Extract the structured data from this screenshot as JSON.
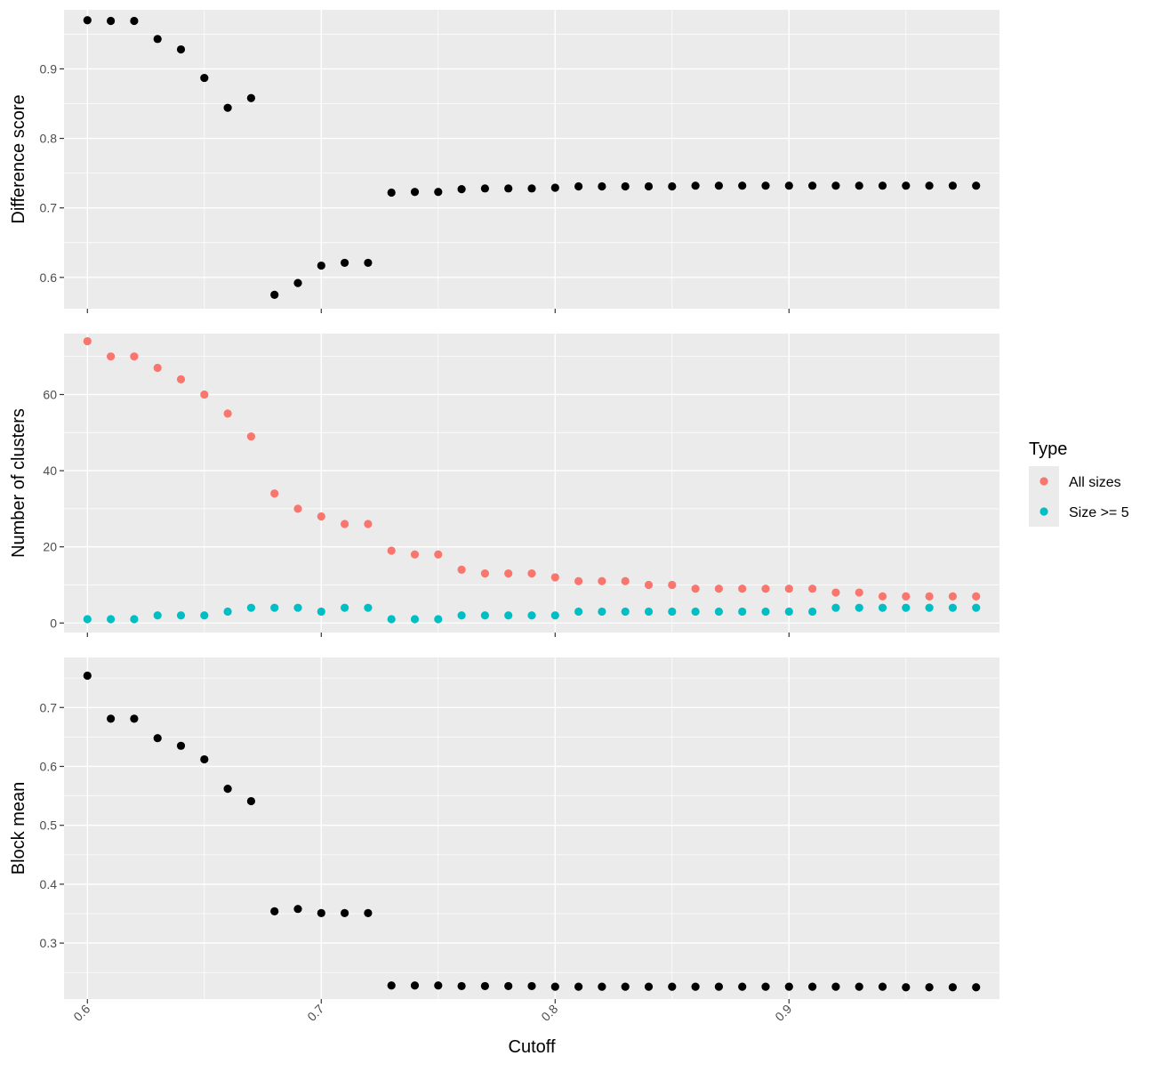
{
  "chart_data": [
    {
      "type": "scatter",
      "title": "",
      "xlabel": "",
      "ylabel": "Difference score",
      "xlim": [
        0.59,
        0.99
      ],
      "ylim": [
        0.555,
        0.985
      ],
      "xticks": [
        0.6,
        0.7,
        0.8,
        0.9
      ],
      "yticks": [
        0.6,
        0.7,
        0.8,
        0.9
      ],
      "x_tick_labels": [],
      "y_tick_labels": [
        "0.6",
        "0.7",
        "0.8",
        "0.9"
      ],
      "grid": true,
      "color": "#000000",
      "x": [
        0.6,
        0.61,
        0.62,
        0.63,
        0.64,
        0.65,
        0.66,
        0.67,
        0.68,
        0.69,
        0.7,
        0.71,
        0.72,
        0.73,
        0.74,
        0.75,
        0.76,
        0.77,
        0.78,
        0.79,
        0.8,
        0.81,
        0.82,
        0.83,
        0.84,
        0.85,
        0.86,
        0.87,
        0.88,
        0.89,
        0.9,
        0.91,
        0.92,
        0.93,
        0.94,
        0.95,
        0.96,
        0.97,
        0.98
      ],
      "y": [
        0.97,
        0.969,
        0.969,
        0.943,
        0.928,
        0.887,
        0.844,
        0.858,
        0.575,
        0.592,
        0.617,
        0.621,
        0.621,
        0.722,
        0.723,
        0.723,
        0.727,
        0.728,
        0.728,
        0.728,
        0.729,
        0.731,
        0.731,
        0.731,
        0.731,
        0.731,
        0.732,
        0.732,
        0.732,
        0.732,
        0.732,
        0.732,
        0.732,
        0.732,
        0.732,
        0.732,
        0.732,
        0.732,
        0.732
      ]
    },
    {
      "type": "scatter",
      "title": "",
      "xlabel": "",
      "ylabel": "Number of clusters",
      "xlim": [
        0.59,
        0.99
      ],
      "ylim": [
        -2.5,
        76
      ],
      "xticks": [
        0.6,
        0.7,
        0.8,
        0.9
      ],
      "yticks": [
        0,
        20,
        40,
        60
      ],
      "x_tick_labels": [],
      "y_tick_labels": [
        "0",
        "20",
        "40",
        "60"
      ],
      "grid": true,
      "legend": {
        "title": "Type",
        "position": "right",
        "entries": [
          {
            "label": "All sizes",
            "color": "#F8766D"
          },
          {
            "label": "Size >= 5",
            "color": "#00BFC4"
          }
        ]
      },
      "x": [
        0.6,
        0.61,
        0.62,
        0.63,
        0.64,
        0.65,
        0.66,
        0.67,
        0.68,
        0.69,
        0.7,
        0.71,
        0.72,
        0.73,
        0.74,
        0.75,
        0.76,
        0.77,
        0.78,
        0.79,
        0.8,
        0.81,
        0.82,
        0.83,
        0.84,
        0.85,
        0.86,
        0.87,
        0.88,
        0.89,
        0.9,
        0.91,
        0.92,
        0.93,
        0.94,
        0.95,
        0.96,
        0.97,
        0.98
      ],
      "series": [
        {
          "name": "All sizes",
          "color": "#F8766D",
          "values": [
            74,
            70,
            70,
            67,
            64,
            60,
            55,
            49,
            34,
            30,
            28,
            26,
            26,
            19,
            18,
            18,
            14,
            13,
            13,
            13,
            12,
            11,
            11,
            11,
            10,
            10,
            9,
            9,
            9,
            9,
            9,
            9,
            8,
            8,
            7,
            7,
            7,
            7,
            7
          ]
        },
        {
          "name": "Size >= 5",
          "color": "#00BFC4",
          "values": [
            1,
            1,
            1,
            2,
            2,
            2,
            3,
            4,
            4,
            4,
            3,
            4,
            4,
            1,
            1,
            1,
            2,
            2,
            2,
            2,
            2,
            3,
            3,
            3,
            3,
            3,
            3,
            3,
            3,
            3,
            3,
            3,
            4,
            4,
            4,
            4,
            4,
            4,
            4
          ]
        }
      ]
    },
    {
      "type": "scatter",
      "title": "",
      "xlabel": "Cutoff",
      "ylabel": "Block mean",
      "xlim": [
        0.59,
        0.99
      ],
      "ylim": [
        0.205,
        0.785
      ],
      "xticks": [
        0.6,
        0.7,
        0.8,
        0.9
      ],
      "yticks": [
        0.3,
        0.4,
        0.5,
        0.6,
        0.7
      ],
      "x_tick_labels": [
        "0.6",
        "0.7",
        "0.8",
        "0.9"
      ],
      "y_tick_labels": [
        "0.3",
        "0.4",
        "0.5",
        "0.6",
        "0.7"
      ],
      "grid": true,
      "color": "#000000",
      "x": [
        0.6,
        0.61,
        0.62,
        0.63,
        0.64,
        0.65,
        0.66,
        0.67,
        0.68,
        0.69,
        0.7,
        0.71,
        0.72,
        0.73,
        0.74,
        0.75,
        0.76,
        0.77,
        0.78,
        0.79,
        0.8,
        0.81,
        0.82,
        0.83,
        0.84,
        0.85,
        0.86,
        0.87,
        0.88,
        0.89,
        0.9,
        0.91,
        0.92,
        0.93,
        0.94,
        0.95,
        0.96,
        0.97,
        0.98
      ],
      "y": [
        0.754,
        0.681,
        0.681,
        0.648,
        0.635,
        0.612,
        0.562,
        0.541,
        0.354,
        0.358,
        0.351,
        0.351,
        0.351,
        0.228,
        0.228,
        0.228,
        0.227,
        0.227,
        0.227,
        0.227,
        0.226,
        0.226,
        0.226,
        0.226,
        0.226,
        0.226,
        0.226,
        0.226,
        0.226,
        0.226,
        0.226,
        0.226,
        0.226,
        0.226,
        0.226,
        0.225,
        0.225,
        0.225,
        0.225
      ]
    }
  ]
}
